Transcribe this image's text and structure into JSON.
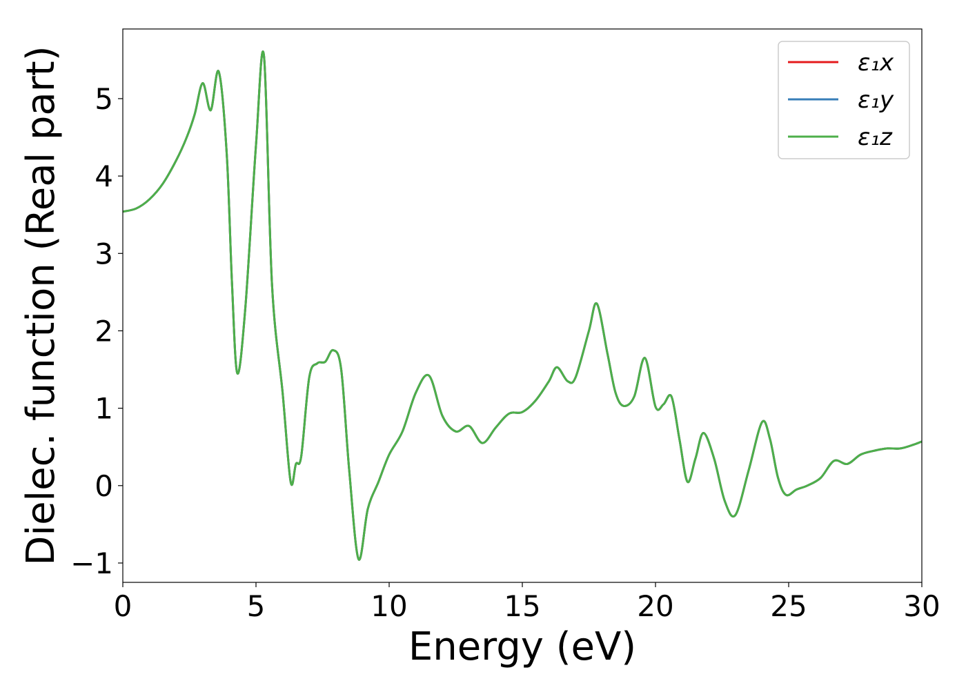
{
  "chart_data": {
    "type": "line",
    "title": "",
    "xlabel": "Energy (eV)",
    "ylabel": "Dielec. function (Real part)",
    "xlim": [
      0,
      30
    ],
    "ylim": [
      -1.25,
      5.9
    ],
    "x_ticks": [
      0,
      5,
      10,
      15,
      20,
      25,
      30
    ],
    "x_tick_labels": [
      "0",
      "5",
      "10",
      "15",
      "20",
      "25",
      "30"
    ],
    "y_ticks": [
      -1,
      0,
      1,
      2,
      3,
      4,
      5
    ],
    "y_tick_labels": [
      "−1",
      "0",
      "1",
      "2",
      "3",
      "4",
      "5"
    ],
    "grid": false,
    "legend_position": "top-right",
    "x": [
      0,
      0.5,
      1.0,
      1.5,
      2.0,
      2.4,
      2.7,
      3.0,
      3.3,
      3.6,
      3.9,
      4.1,
      4.3,
      4.6,
      5.0,
      5.3,
      5.6,
      6.0,
      6.3,
      6.5,
      6.7,
      7.0,
      7.3,
      7.6,
      7.9,
      8.2,
      8.5,
      8.85,
      9.2,
      9.6,
      10.0,
      10.5,
      11.0,
      11.5,
      12.0,
      12.5,
      13.0,
      13.5,
      14.0,
      14.5,
      15.0,
      15.5,
      16.0,
      16.3,
      16.7,
      17.0,
      17.5,
      17.8,
      18.2,
      18.5,
      18.8,
      19.2,
      19.6,
      20.0,
      20.3,
      20.6,
      20.9,
      21.2,
      21.5,
      21.8,
      22.2,
      22.6,
      23.0,
      23.5,
      24.0,
      24.3,
      24.6,
      24.9,
      25.3,
      25.7,
      26.2,
      26.7,
      27.2,
      27.7,
      28.2,
      28.7,
      29.2,
      29.7,
      30.0
    ],
    "series": [
      {
        "name": "ε₁x",
        "color": "#e41a1c",
        "values": [
          3.54,
          3.58,
          3.7,
          3.9,
          4.2,
          4.5,
          4.8,
          5.2,
          4.85,
          5.35,
          4.3,
          2.6,
          1.45,
          2.3,
          4.4,
          5.55,
          2.6,
          1.2,
          0.05,
          0.28,
          0.38,
          1.4,
          1.58,
          1.6,
          1.75,
          1.5,
          0.2,
          -0.95,
          -0.3,
          0.05,
          0.4,
          0.7,
          1.2,
          1.42,
          0.9,
          0.7,
          0.77,
          0.55,
          0.75,
          0.93,
          0.95,
          1.1,
          1.35,
          1.53,
          1.35,
          1.4,
          2.0,
          2.35,
          1.7,
          1.2,
          1.03,
          1.15,
          1.65,
          1.02,
          1.05,
          1.15,
          0.6,
          0.05,
          0.35,
          0.68,
          0.35,
          -0.2,
          -0.38,
          0.2,
          0.82,
          0.6,
          0.1,
          -0.12,
          -0.05,
          0.0,
          0.1,
          0.32,
          0.28,
          0.4,
          0.45,
          0.48,
          0.48,
          0.53,
          0.57
        ]
      },
      {
        "name": "ε₁y",
        "color": "#377eb8",
        "values": [
          3.54,
          3.58,
          3.7,
          3.9,
          4.2,
          4.5,
          4.8,
          5.2,
          4.85,
          5.35,
          4.3,
          2.6,
          1.45,
          2.3,
          4.4,
          5.55,
          2.6,
          1.2,
          0.05,
          0.28,
          0.38,
          1.4,
          1.58,
          1.6,
          1.75,
          1.5,
          0.2,
          -0.95,
          -0.3,
          0.05,
          0.4,
          0.7,
          1.2,
          1.42,
          0.9,
          0.7,
          0.77,
          0.55,
          0.75,
          0.93,
          0.95,
          1.1,
          1.35,
          1.53,
          1.35,
          1.4,
          2.0,
          2.35,
          1.7,
          1.2,
          1.03,
          1.15,
          1.65,
          1.02,
          1.05,
          1.15,
          0.6,
          0.05,
          0.35,
          0.68,
          0.35,
          -0.2,
          -0.38,
          0.2,
          0.82,
          0.6,
          0.1,
          -0.12,
          -0.05,
          0.0,
          0.1,
          0.32,
          0.28,
          0.4,
          0.45,
          0.48,
          0.48,
          0.53,
          0.57
        ]
      },
      {
        "name": "ε₁z",
        "color": "#4daf4a",
        "values": [
          3.54,
          3.58,
          3.7,
          3.9,
          4.2,
          4.5,
          4.8,
          5.2,
          4.85,
          5.35,
          4.3,
          2.6,
          1.45,
          2.3,
          4.4,
          5.55,
          2.6,
          1.2,
          0.05,
          0.28,
          0.38,
          1.4,
          1.58,
          1.6,
          1.75,
          1.5,
          0.2,
          -0.95,
          -0.3,
          0.05,
          0.4,
          0.7,
          1.2,
          1.42,
          0.9,
          0.7,
          0.77,
          0.55,
          0.75,
          0.93,
          0.95,
          1.1,
          1.35,
          1.53,
          1.35,
          1.4,
          2.0,
          2.35,
          1.7,
          1.2,
          1.03,
          1.15,
          1.65,
          1.02,
          1.05,
          1.15,
          0.6,
          0.05,
          0.35,
          0.68,
          0.35,
          -0.2,
          -0.38,
          0.2,
          0.82,
          0.6,
          0.1,
          -0.12,
          -0.05,
          0.0,
          0.1,
          0.32,
          0.28,
          0.4,
          0.45,
          0.48,
          0.48,
          0.53,
          0.57
        ]
      }
    ]
  }
}
